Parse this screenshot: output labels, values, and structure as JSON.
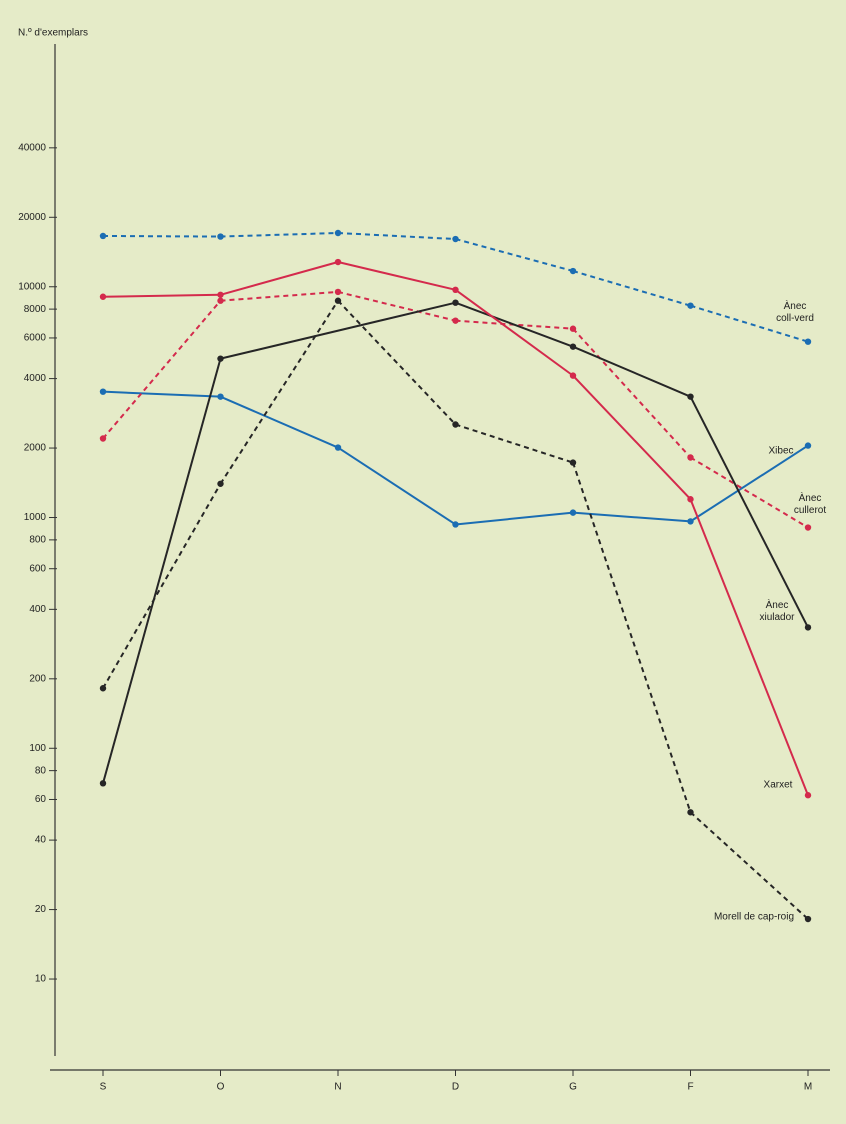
{
  "chart_data": {
    "type": "line",
    "y_label": "N.º d'exemplars",
    "categories": [
      "S",
      "O",
      "N",
      "D",
      "G",
      "F",
      "M"
    ],
    "log_scale": true,
    "ylim": [
      5,
      100000
    ],
    "yticks": [
      10,
      20,
      40,
      60,
      80,
      100,
      200,
      400,
      600,
      800,
      1000,
      2000,
      4000,
      6000,
      8000,
      10000,
      20000,
      40000
    ],
    "series": [
      {
        "name": "Ànec coll-verd",
        "color": "#1b6db3",
        "dashed": true,
        "values": [
          16600,
          16500,
          17100,
          16100,
          11700,
          8280,
          5780
        ]
      },
      {
        "name": "Xibec",
        "color": "#1b6db3",
        "dashed": false,
        "values": [
          3510,
          3340,
          2010,
          933,
          1050,
          962,
          2050
        ]
      },
      {
        "name": "Ànec cullerot",
        "color": "#d42a4c",
        "dashed": true,
        "values": [
          2200,
          8700,
          9500,
          7130,
          6580,
          1820,
          905
        ]
      },
      {
        "name": "Ànec xiulador",
        "color": "#262626",
        "dashed": false,
        "values": [
          70.5,
          4880,
          null,
          8530,
          5500,
          3340,
          334
        ]
      },
      {
        "name": "Xarxet",
        "color": "#d42a4c",
        "dashed": false,
        "values": [
          9050,
          9230,
          12800,
          9700,
          4120,
          1200,
          62.6
        ]
      },
      {
        "name": "Morell de cap-roig",
        "color": "#262626",
        "dashed": true,
        "values": [
          182,
          1400,
          8700,
          2530,
          1730,
          52.8,
          18.2
        ]
      }
    ]
  }
}
